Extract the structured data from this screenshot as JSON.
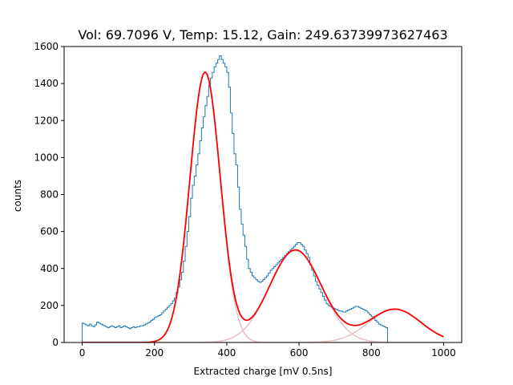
{
  "chart_data": {
    "type": "line",
    "title": "Vol: 69.7096 V, Temp: 15.12, Gain: 249.63739973627463",
    "xlabel": "Extracted charge [mV 0.5ns]",
    "ylabel": "counts",
    "xlim": [
      -50,
      1050
    ],
    "ylim": [
      0,
      1600
    ],
    "xticks": [
      0,
      200,
      400,
      600,
      800,
      1000
    ],
    "yticks": [
      0,
      200,
      400,
      600,
      800,
      1000,
      1200,
      1400,
      1600
    ],
    "grid": false,
    "legend": "none",
    "series": [
      {
        "kind": "step-histogram",
        "color": "#1f77b4",
        "bin_width": 5,
        "x_start": 0,
        "counts": [
          105,
          100,
          95,
          90,
          100,
          90,
          85,
          95,
          110,
          105,
          100,
          95,
          90,
          85,
          80,
          85,
          90,
          85,
          80,
          85,
          90,
          80,
          85,
          90,
          85,
          80,
          75,
          80,
          85,
          80,
          85,
          85,
          90,
          90,
          95,
          100,
          105,
          110,
          120,
          125,
          135,
          140,
          145,
          150,
          160,
          170,
          180,
          190,
          200,
          210,
          225,
          240,
          270,
          300,
          340,
          380,
          440,
          520,
          600,
          680,
          780,
          850,
          900,
          960,
          1020,
          1090,
          1160,
          1220,
          1280,
          1330,
          1390,
          1430,
          1460,
          1490,
          1510,
          1530,
          1550,
          1530,
          1510,
          1490,
          1460,
          1380,
          1240,
          1130,
          1020,
          960,
          840,
          720,
          640,
          580,
          520,
          450,
          400,
          380,
          360,
          350,
          340,
          330,
          325,
          330,
          340,
          350,
          360,
          375,
          390,
          400,
          410,
          420,
          430,
          440,
          450,
          460,
          470,
          480,
          490,
          500,
          510,
          520,
          530,
          540,
          540,
          530,
          520,
          500,
          480,
          460,
          420,
          390,
          360,
          330,
          310,
          290,
          270,
          250,
          230,
          210,
          200,
          195,
          190,
          185,
          180,
          175,
          170,
          170,
          165,
          165,
          170,
          175,
          180,
          185,
          190,
          195,
          195,
          190,
          185,
          180,
          175,
          170,
          160,
          150,
          140,
          130,
          120,
          110,
          100,
          95,
          90,
          85,
          80
        ]
      },
      {
        "kind": "fit",
        "color": "#ff0000",
        "peaks": [
          {
            "amplitude": 1460,
            "mean": 340,
            "sigma": 42
          },
          {
            "amplitude": 500,
            "mean": 590,
            "sigma": 72
          },
          {
            "amplitude": 180,
            "mean": 865,
            "sigma": 72
          }
        ]
      },
      {
        "kind": "components",
        "color": "#e8c0c0",
        "peaks": [
          {
            "amplitude": 1460,
            "mean": 340,
            "sigma": 42
          },
          {
            "amplitude": 500,
            "mean": 590,
            "sigma": 72
          },
          {
            "amplitude": 180,
            "mean": 865,
            "sigma": 72
          }
        ]
      }
    ]
  }
}
